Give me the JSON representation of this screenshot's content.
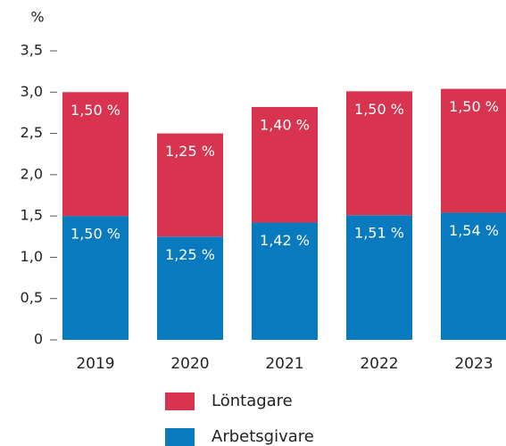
{
  "chart_data": {
    "type": "bar",
    "stacked": true,
    "y_label": "%",
    "categories": [
      "2019",
      "2020",
      "2021",
      "2022",
      "2023"
    ],
    "series": [
      {
        "name": "Arbetsgivare",
        "color": "#0a7abf",
        "values": [
          1.5,
          1.25,
          1.42,
          1.51,
          1.54
        ],
        "value_labels": [
          "1,50 %",
          "1,25 %",
          "1,42 %",
          "1,51 %",
          "1,54 %"
        ]
      },
      {
        "name": "Löntagare",
        "color": "#d9344f",
        "values": [
          1.5,
          1.25,
          1.4,
          1.5,
          1.5
        ],
        "value_labels": [
          "1,50 %",
          "1,25 %",
          "1,40 %",
          "1,50 %",
          "1,50 %"
        ]
      }
    ],
    "ylim": [
      0,
      3.5
    ],
    "yticks": [
      0,
      {
        "value": 0.5,
        "label": "0,5"
      },
      {
        "value": 1,
        "label": "1,0"
      },
      {
        "value": 1.5,
        "label": "1,5"
      },
      {
        "value": 2,
        "label": "2,0"
      },
      {
        "value": 2.5,
        "label": "2,5"
      },
      {
        "value": 3,
        "label": "3,0"
      },
      {
        "value": 3.5,
        "label": "3,5"
      }
    ]
  }
}
